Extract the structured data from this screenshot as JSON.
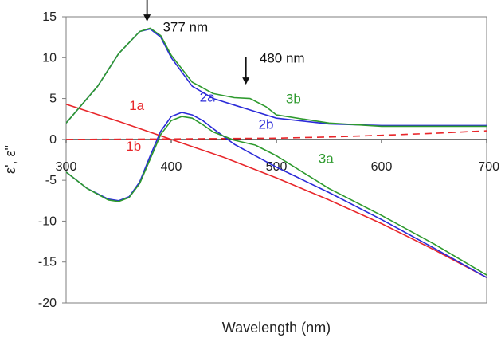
{
  "chart_data": {
    "type": "line",
    "title": "",
    "xlabel": "Wavelength (nm)",
    "ylabel": "ε', ε\"",
    "xlim": [
      300,
      700
    ],
    "ylim": [
      -20,
      15
    ],
    "x_ticks": [
      300,
      400,
      500,
      600,
      700
    ],
    "y_ticks": [
      -20,
      -15,
      -10,
      -5,
      0,
      5,
      10,
      15
    ],
    "grid": false,
    "legend": "none",
    "series": [
      {
        "name": "1a",
        "color": "#e8262a",
        "dash": "solid",
        "x": [
          300,
          350,
          400,
          450,
          500,
          550,
          600,
          650,
          700
        ],
        "y": [
          4.3,
          2.2,
          0.0,
          -2.2,
          -4.7,
          -7.4,
          -10.3,
          -13.5,
          -16.9
        ]
      },
      {
        "name": "1b",
        "color": "#e8262a",
        "dash": "dashed",
        "x": [
          300,
          400,
          500,
          550,
          600,
          650,
          700
        ],
        "y": [
          0.0,
          0.05,
          0.15,
          0.3,
          0.5,
          0.75,
          1.05
        ]
      },
      {
        "name": "2a",
        "color": "#2b2bd8",
        "dash": "solid",
        "x": [
          300,
          320,
          340,
          350,
          360,
          370,
          380,
          390,
          400,
          410,
          420,
          430,
          440,
          460,
          480,
          500,
          550,
          600,
          650,
          700
        ],
        "y": [
          -4.0,
          -6.0,
          -7.3,
          -7.5,
          -7.0,
          -5.2,
          -2.0,
          1.0,
          2.8,
          3.3,
          3.0,
          2.3,
          1.3,
          -0.6,
          -2.0,
          -3.4,
          -6.5,
          -9.8,
          -13.3,
          -16.9
        ]
      },
      {
        "name": "2b",
        "color": "#2b2bd8",
        "dash": "solid",
        "x": [
          300,
          330,
          350,
          370,
          380,
          390,
          400,
          420,
          440,
          460,
          480,
          500,
          550,
          600,
          650,
          700
        ],
        "y": [
          2.0,
          6.5,
          10.5,
          13.2,
          13.5,
          12.5,
          10.0,
          6.5,
          5.0,
          4.2,
          3.4,
          2.6,
          1.9,
          1.7,
          1.7,
          1.7
        ]
      },
      {
        "name": "3a",
        "color": "#2e9a2e",
        "dash": "solid",
        "x": [
          300,
          320,
          340,
          350,
          360,
          370,
          380,
          390,
          400,
          410,
          420,
          430,
          440,
          460,
          480,
          500,
          550,
          600,
          650,
          700
        ],
        "y": [
          -4.0,
          -6.0,
          -7.4,
          -7.6,
          -7.1,
          -5.4,
          -2.4,
          0.6,
          2.3,
          2.8,
          2.6,
          1.8,
          0.9,
          -0.1,
          -0.7,
          -2.0,
          -6.0,
          -9.3,
          -12.8,
          -16.6
        ]
      },
      {
        "name": "3b",
        "color": "#2e9a2e",
        "dash": "solid",
        "x": [
          300,
          330,
          350,
          370,
          380,
          390,
          400,
          420,
          440,
          460,
          475,
          490,
          500,
          550,
          600,
          650,
          700
        ],
        "y": [
          2.0,
          6.5,
          10.5,
          13.2,
          13.6,
          12.7,
          10.3,
          7.0,
          5.6,
          5.1,
          5.0,
          4.0,
          3.0,
          2.0,
          1.6,
          1.6,
          1.6
        ]
      }
    ],
    "curve_labels": [
      {
        "text": "1a",
        "x": 360,
        "y": 3.6,
        "color": "#e8262a"
      },
      {
        "text": "1b",
        "x": 357,
        "y": -1.4,
        "color": "#e8262a"
      },
      {
        "text": "2a",
        "x": 427,
        "y": 4.6,
        "color": "#2b2bd8"
      },
      {
        "text": "2b",
        "x": 483,
        "y": 1.3,
        "color": "#2b2bd8"
      },
      {
        "text": "3b",
        "x": 509,
        "y": 4.4,
        "color": "#2e9a2e"
      },
      {
        "text": "3a",
        "x": 540,
        "y": -2.9,
        "color": "#2e9a2e"
      }
    ],
    "annotations": [
      {
        "text": "377 nm",
        "x": 377,
        "text_x": 392,
        "text_y": 13.2,
        "arrow_from_y": 17.2,
        "arrow_to_y": 14.4
      },
      {
        "text": "480 nm",
        "x": 471,
        "text_x": 484,
        "text_y": 9.4,
        "arrow_from_y": 10.1,
        "arrow_to_y": 6.7
      }
    ]
  }
}
